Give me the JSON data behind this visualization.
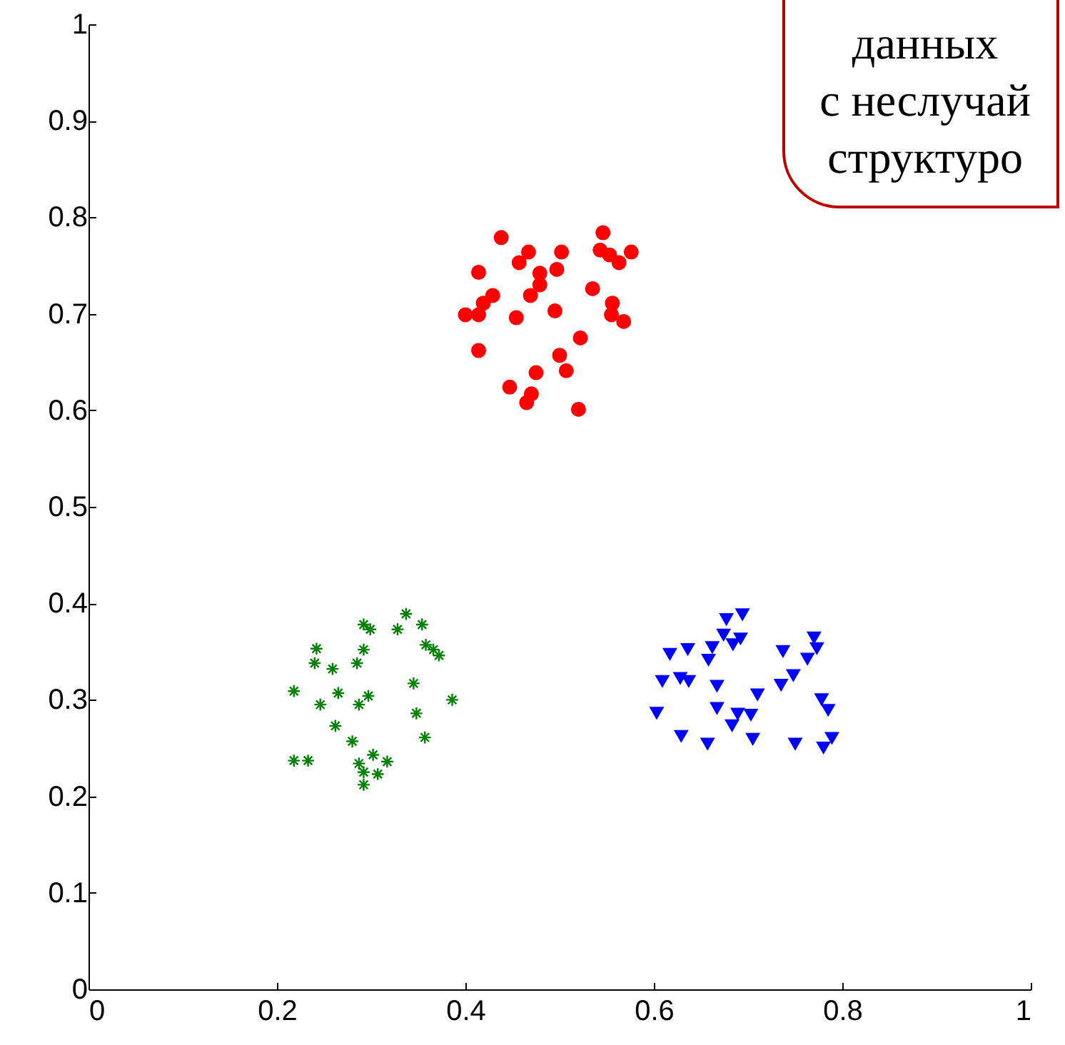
{
  "chart_data": {
    "type": "scatter",
    "xlim": [
      0,
      1
    ],
    "ylim": [
      0,
      1
    ],
    "xticks": [
      0,
      0.2,
      0.4,
      0.6,
      0.8,
      1
    ],
    "yticks": [
      0,
      0.1,
      0.2,
      0.3,
      0.4,
      0.5,
      0.6,
      0.7,
      0.8,
      0.9,
      1
    ],
    "grid": false,
    "annotations": [
      "данных",
      "с неслучай",
      "структуро"
    ],
    "series": [
      {
        "color": "#ff0000",
        "marker": "circle",
        "x": [
          0.438,
          0.546,
          0.467,
          0.457,
          0.502,
          0.543,
          0.553,
          0.563,
          0.576,
          0.414,
          0.479,
          0.497,
          0.479,
          0.429,
          0.469,
          0.535,
          0.419,
          0.556,
          0.4,
          0.414,
          0.454,
          0.495,
          0.555,
          0.568,
          0.414,
          0.522,
          0.5,
          0.507,
          0.475,
          0.447,
          0.47,
          0.465,
          0.52
        ],
        "values": [
          0.779,
          0.784,
          0.764,
          0.753,
          0.764,
          0.766,
          0.761,
          0.753,
          0.764,
          0.743,
          0.742,
          0.746,
          0.73,
          0.719,
          0.719,
          0.726,
          0.711,
          0.711,
          0.699,
          0.699,
          0.696,
          0.703,
          0.699,
          0.692,
          0.662,
          0.675,
          0.657,
          0.641,
          0.639,
          0.624,
          0.617,
          0.608,
          0.601
        ]
      },
      {
        "color": "#008000",
        "marker": "cross",
        "x": [
          0.218,
          0.242,
          0.24,
          0.259,
          0.292,
          0.299,
          0.328,
          0.337,
          0.354,
          0.358,
          0.366,
          0.372,
          0.292,
          0.285,
          0.265,
          0.246,
          0.287,
          0.297,
          0.345,
          0.386,
          0.348,
          0.262,
          0.28,
          0.357,
          0.218,
          0.233,
          0.302,
          0.317,
          0.287,
          0.292,
          0.307,
          0.292
        ],
        "values": [
          0.309,
          0.353,
          0.338,
          0.332,
          0.378,
          0.373,
          0.373,
          0.389,
          0.378,
          0.357,
          0.352,
          0.346,
          0.352,
          0.338,
          0.307,
          0.295,
          0.295,
          0.304,
          0.317,
          0.3,
          0.286,
          0.273,
          0.257,
          0.261,
          0.237,
          0.237,
          0.243,
          0.236,
          0.234,
          0.225,
          0.223,
          0.212
        ]
      },
      {
        "color": "#0000ff",
        "marker": "triangle",
        "x": [
          0.694,
          0.677,
          0.674,
          0.692,
          0.684,
          0.617,
          0.636,
          0.662,
          0.658,
          0.737,
          0.77,
          0.773,
          0.763,
          0.748,
          0.735,
          0.609,
          0.628,
          0.637,
          0.667,
          0.71,
          0.778,
          0.785,
          0.603,
          0.667,
          0.689,
          0.703,
          0.683,
          0.629,
          0.705,
          0.657,
          0.75,
          0.789,
          0.78
        ],
        "values": [
          0.388,
          0.383,
          0.367,
          0.363,
          0.357,
          0.347,
          0.352,
          0.354,
          0.341,
          0.35,
          0.364,
          0.353,
          0.342,
          0.325,
          0.315,
          0.319,
          0.322,
          0.319,
          0.314,
          0.305,
          0.3,
          0.289,
          0.286,
          0.291,
          0.285,
          0.284,
          0.273,
          0.262,
          0.259,
          0.254,
          0.254,
          0.26,
          0.25
        ]
      }
    ]
  }
}
